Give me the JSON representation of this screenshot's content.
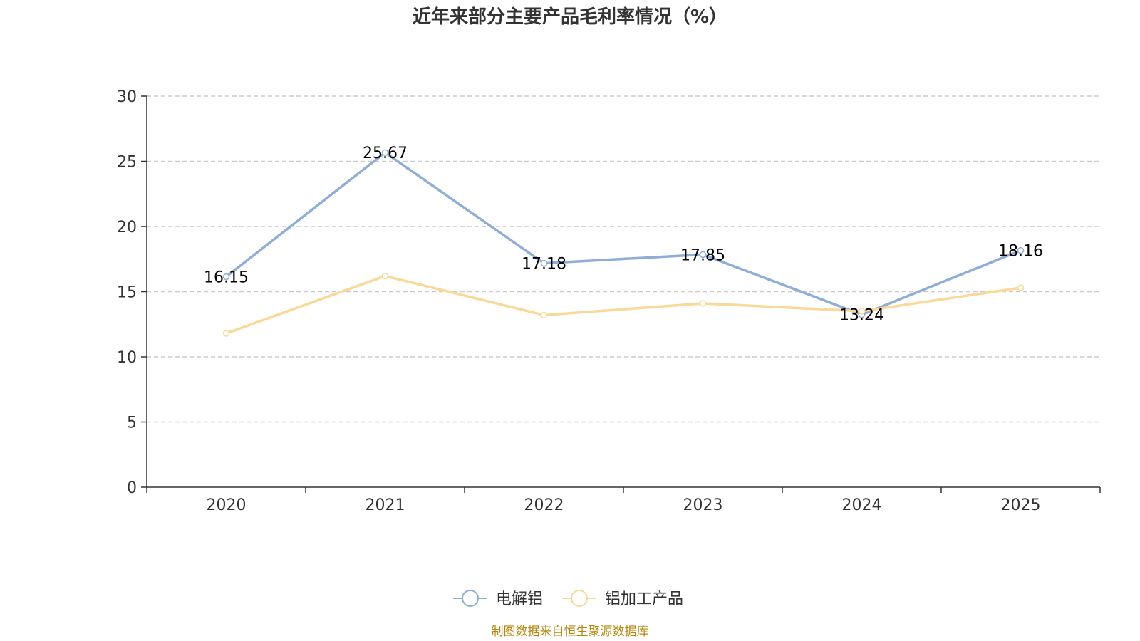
{
  "chart_data": {
    "type": "line",
    "title": "近年来部分主要产品毛利率情况（%）",
    "categories": [
      "2020",
      "2021",
      "2022",
      "2023",
      "2024",
      "2025"
    ],
    "ylim": [
      0,
      30
    ],
    "yticks": [
      0,
      5,
      10,
      15,
      20,
      25,
      30
    ],
    "grid": true,
    "legend_position": "bottom",
    "series": [
      {
        "name": "电解铝",
        "values": [
          16.15,
          25.67,
          17.18,
          17.85,
          13.24,
          18.16
        ],
        "labels": [
          "16.15",
          "25.67",
          "17.18",
          "17.85",
          "13.24",
          "18.16"
        ],
        "color": "#8eaed8"
      },
      {
        "name": "铝加工产品",
        "values": [
          11.8,
          16.2,
          13.2,
          14.1,
          13.5,
          15.3
        ],
        "color": "#f9d898"
      }
    ]
  },
  "source_note": "制图数据来自恒生聚源数据库"
}
